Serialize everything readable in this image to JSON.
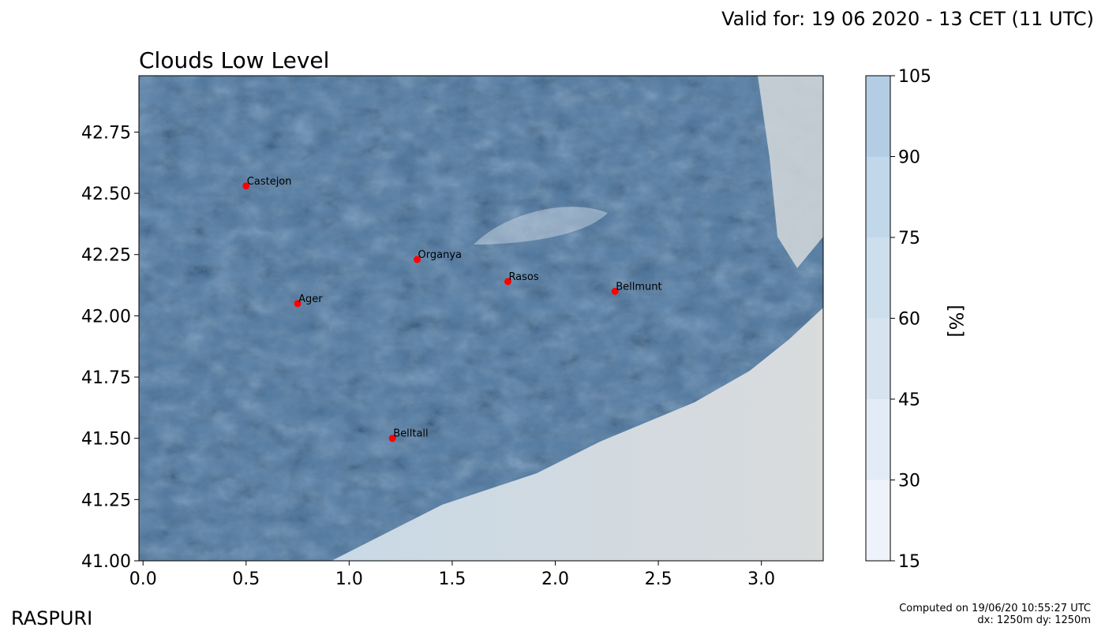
{
  "header": {
    "valid_for": "Valid for: 19 06 2020 - 13 CET (11 UTC)"
  },
  "map": {
    "title": "Clouds Low Level",
    "x_range": [
      -0.02,
      3.3
    ],
    "y_range": [
      41.0,
      42.98
    ],
    "x_ticks": [
      "0.0",
      "0.5",
      "1.0",
      "1.5",
      "2.0",
      "2.5",
      "3.0"
    ],
    "x_tick_values": [
      0.0,
      0.5,
      1.0,
      1.5,
      2.0,
      2.5,
      3.0
    ],
    "y_ticks": [
      "41.00",
      "41.25",
      "41.50",
      "41.75",
      "42.00",
      "42.25",
      "42.50",
      "42.75"
    ],
    "y_tick_values": [
      41.0,
      41.25,
      41.5,
      41.75,
      42.0,
      42.25,
      42.5,
      42.75
    ],
    "cloud_color": "#5b89b8",
    "sea_color": "#d2d6d9",
    "places": [
      {
        "name": "Castejon",
        "lon": 0.5,
        "lat": 42.53
      },
      {
        "name": "Organya",
        "lon": 1.33,
        "lat": 42.23
      },
      {
        "name": "Rasos",
        "lon": 1.77,
        "lat": 42.14
      },
      {
        "name": "Bellmunt",
        "lon": 2.29,
        "lat": 42.1
      },
      {
        "name": "Ager",
        "lon": 0.75,
        "lat": 42.05
      },
      {
        "name": "Belltall",
        "lon": 1.21,
        "lat": 41.5
      }
    ],
    "marker_color": "#ff0000"
  },
  "colorbar": {
    "unit": "[%]",
    "levels": [
      15,
      30,
      45,
      60,
      75,
      90,
      105
    ],
    "labels": [
      "15",
      "30",
      "45",
      "60",
      "75",
      "90",
      "105"
    ],
    "colors": [
      "#eef3fb",
      "#e3ecf6",
      "#d7e4ef",
      "#cddeec",
      "#c1d7ea",
      "#b3cde5"
    ]
  },
  "footer": {
    "brand": "RASPURI",
    "computed_on": "Computed on 19/06/20 10:55:27 UTC",
    "resolution": "dx: 1250m dy: 1250m"
  }
}
